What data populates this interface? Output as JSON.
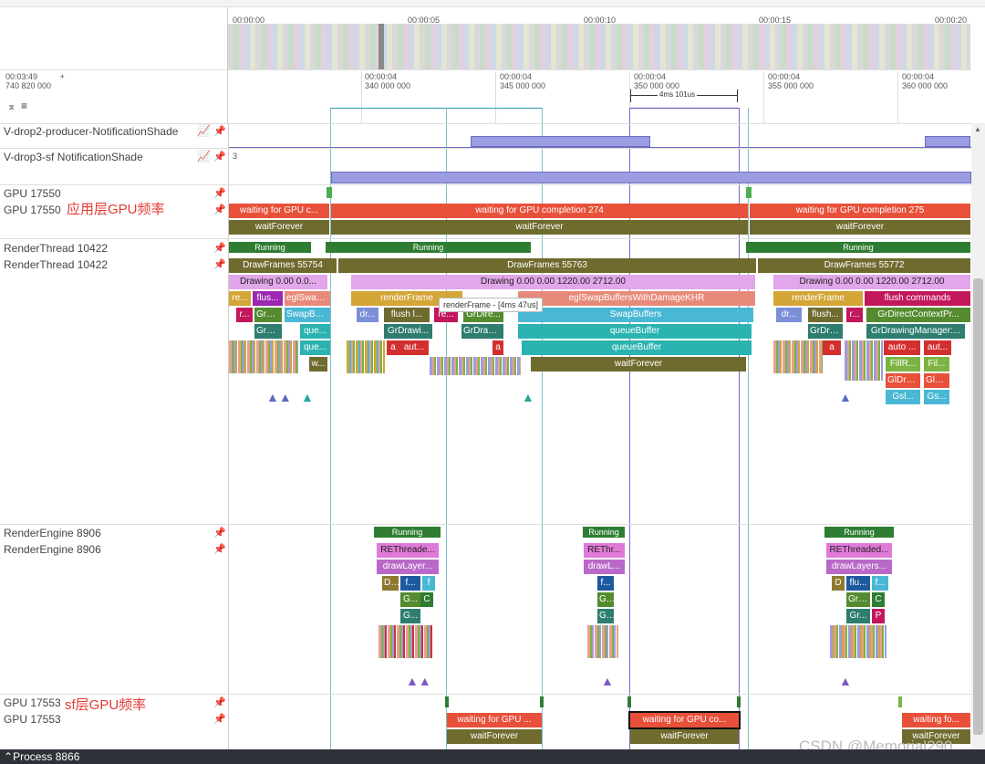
{
  "overview": {
    "ticks": [
      "00:00:00",
      "00:00:05",
      "00:00:10",
      "00:00:15",
      "00:00:20"
    ]
  },
  "ruler": {
    "offset_top": "00:03:49",
    "offset_bottom": "740 820 000",
    "plus": "+",
    "ticks": [
      {
        "top": "00:00:04",
        "bottom": "340 000 000"
      },
      {
        "top": "00:00:04",
        "bottom": "345 000 000"
      },
      {
        "top": "00:00:04",
        "bottom": "350 000 000"
      },
      {
        "top": "00:00:04",
        "bottom": "355 000 000"
      },
      {
        "top": "00:00:04",
        "bottom": "360 000 000"
      }
    ],
    "measure": "4ms 101us"
  },
  "tracks": {
    "vdrop2": "V-drop2-producer-NotificationShade",
    "vdrop3": "V-drop3-sf NotificationShade",
    "vdrop3_value": "3",
    "gpu_app_1": "GPU 17550",
    "gpu_app_2": "GPU 17550",
    "gpu_app_annotation": "应用层GPU频率",
    "rt_1": "RenderThread 10422",
    "rt_2": "RenderThread 10422",
    "re_1": "RenderEngine 8906",
    "re_2": "RenderEngine 8906",
    "gpu_sf_1": "GPU 17553",
    "gpu_sf_2": "GPU 17553",
    "gpu_sf_annotation": "sf层GPU频率"
  },
  "slices": {
    "gpu_app_wait": [
      "waiting for GPU c...",
      "waiting for GPU completion 274",
      "waiting for GPU completion 275"
    ],
    "waitForever": "waitForever",
    "running": "Running",
    "drawframes": [
      "DrawFrames 55754",
      "DrawFrames 55763",
      "DrawFrames 55772"
    ],
    "drawing_1": "Drawing  0.00  0.0...",
    "drawing_2": "Drawing  0.00  0.00 1220.00 2712.00",
    "row3": [
      "re...",
      "flus...",
      "eglSwap...",
      "renderFrame",
      "eglSwapBuffersWithDamageKHR",
      "renderFrame",
      "flush commands"
    ],
    "row4": [
      "r...",
      "GrDi...",
      "SwapBuf...",
      "dr...",
      "flush l...",
      "re...",
      "GrDire...",
      "SwapBuffers",
      "dr...",
      "flush...",
      "r...",
      "GrDirectContextPr..."
    ],
    "row5": [
      "GrD...",
      "que...",
      "GrDrawi...",
      "GrDraw...",
      "queueBuffer",
      "GrDra...",
      "GrDrawingManager:..."
    ],
    "row6": [
      "que...",
      "a",
      "aut...",
      "a",
      "queueBuffer",
      "a",
      "auto ...",
      "aut..."
    ],
    "row7": [
      "w...",
      "waitForever",
      "FillR...",
      "Fil..."
    ],
    "row8": [
      "GlDra...",
      "GlD..."
    ],
    "row9": [
      "Gsl...",
      "Gs..."
    ],
    "tooltip": "renderFrame - [4ms 47us]",
    "re_top": [
      "REThreade...",
      "REThr...",
      "REThreaded..."
    ],
    "re_draw": [
      "drawLayer...",
      "drawL...",
      "drawLayers..."
    ],
    "re_r3": [
      "D...",
      "f...",
      "f",
      "f...",
      "D",
      "flu...",
      "f..."
    ],
    "re_r4": [
      "G...",
      "C",
      "G...",
      "GrD...",
      "C"
    ],
    "re_r5": [
      "G...",
      "G...",
      "Gr...",
      "P"
    ],
    "gpu_sf_wait": [
      "waiting for GPU ...",
      "waiting for GPU co...",
      "waiting fo..."
    ]
  },
  "process": "Process 8866",
  "watermark": "CSDN @Memorial290",
  "colors": {
    "red": "#e8503a",
    "olive": "#6f6b2e",
    "green": "#2e7d32",
    "drawing": "#d58ce3",
    "teal": "#2bb3b1",
    "cyan": "#4ab8d4",
    "purple": "#9c9ce0"
  }
}
